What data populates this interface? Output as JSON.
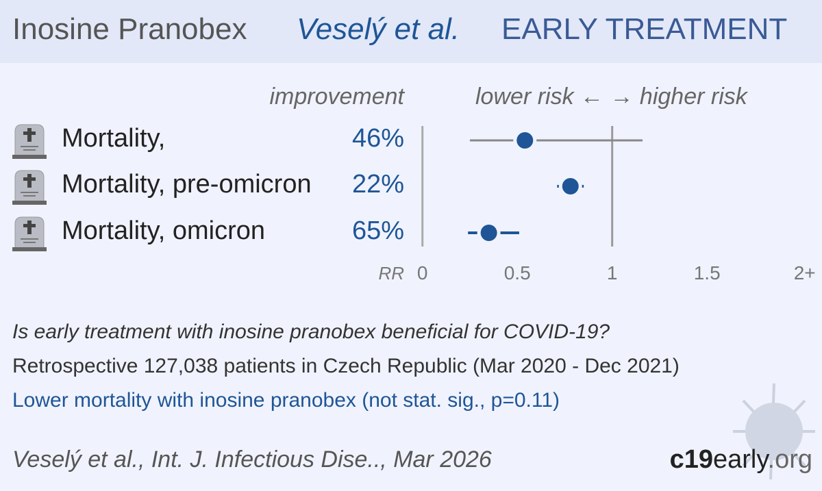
{
  "header": {
    "drug": "Inosine Pranobex",
    "study": "Veselý et al.",
    "stage": "EARLY TREATMENT"
  },
  "columns": {
    "improvement": "improvement",
    "direction": "lower risk ← → higher risk"
  },
  "colors": {
    "accent": "#1f5596",
    "line": "#888888",
    "background": "#f0f3fd"
  },
  "chart_data": {
    "type": "forest",
    "xlabel": "RR",
    "xlim": [
      0,
      2
    ],
    "ticks": [
      {
        "v": 0,
        "label": "0"
      },
      {
        "v": 0.5,
        "label": "0.5"
      },
      {
        "v": 1,
        "label": "1"
      },
      {
        "v": 1.5,
        "label": "1.5"
      },
      {
        "v": 2,
        "label": "2+"
      }
    ],
    "rows": [
      {
        "icon": "tombstone-icon",
        "label": "Mortality,",
        "improvement": "46%",
        "rr": 0.54,
        "ci": [
          0.25,
          1.16
        ]
      },
      {
        "icon": "tombstone-icon",
        "label": "Mortality, pre-omicron",
        "improvement": "22%",
        "rr": 0.78,
        "ci": [
          0.71,
          0.85
        ]
      },
      {
        "icon": "tombstone-icon",
        "label": "Mortality, omicron",
        "improvement": "65%",
        "rr": 0.35,
        "ci": [
          0.24,
          0.51
        ]
      }
    ]
  },
  "summary": {
    "question": "Is early treatment with inosine pranobex beneficial for COVID-19?",
    "design": "Retrospective 127,038 patients in Czech Republic (Mar 2020 - Dec 2021)",
    "result": "Lower mortality with inosine pranobex (not stat. sig., p=0.11)"
  },
  "footer": {
    "citation": "Veselý et al., Int. J. Infectious Dise.., Mar 2026",
    "logo_bold": "c19",
    "logo_rest": "early",
    "logo_tld": ".org"
  }
}
